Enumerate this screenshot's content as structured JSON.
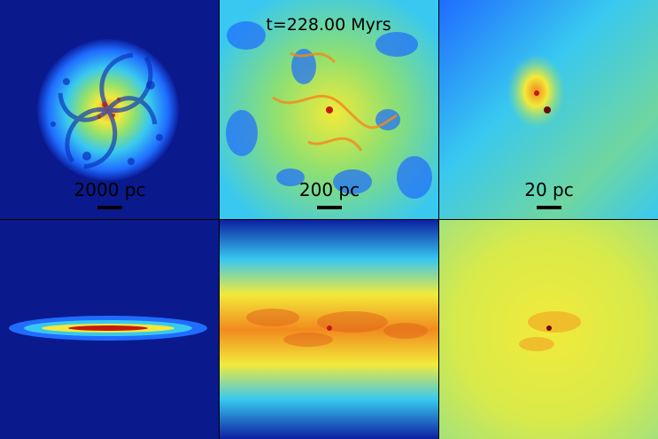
{
  "timestamp": "t=228.00 Myrs",
  "scale_labels": {
    "panel1": "2000 pc",
    "panel2": "200 pc",
    "panel3": "20 pc"
  },
  "colormap": {
    "background": "#0a1a8c",
    "deep_blue": "#0b1fa0",
    "blue": "#1f6cff",
    "cyan": "#38c8f0",
    "green": "#8ee070",
    "yellow": "#f2ea3a",
    "orange": "#f28a1e",
    "red": "#c21a10",
    "dark_red": "#6e0a08"
  }
}
